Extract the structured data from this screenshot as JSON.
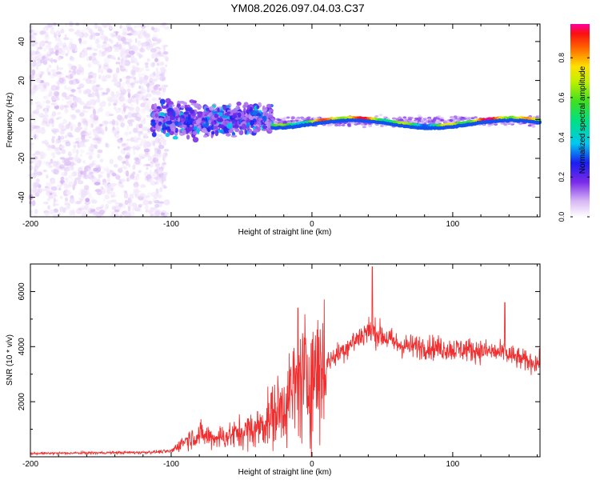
{
  "title": "YM08.2026.097.04.03.C37",
  "chart_data": [
    {
      "type": "heatmap",
      "title": "YM08.2026.097.04.03.C37",
      "xlabel": "Height of straight line (km)",
      "ylabel": "Frequency (Hz)",
      "xlim": [
        -200,
        162
      ],
      "ylim": [
        -50,
        49
      ],
      "xticks": [
        -200,
        -100,
        0,
        100
      ],
      "yticks": [
        -40,
        -20,
        0,
        20,
        40
      ],
      "colorbar": {
        "label": "Normalized spectral amplitude",
        "range": [
          0,
          0.97
        ],
        "ticks": [
          0,
          0.2,
          0.4,
          0.6,
          0.8
        ],
        "tick_labels": [
          "0.0",
          "0.2",
          "0.4",
          "0.6",
          "0.8"
        ]
      },
      "regions": [
        {
          "name": "broadband noise",
          "x_range": [
            -200,
            -103
          ],
          "freq_range": [
            -50,
            49
          ],
          "amplitude": [
            0.02,
            0.1
          ]
        },
        {
          "name": "spread signal",
          "x_range": [
            -113,
            -28
          ],
          "freq_range": [
            -15,
            15
          ],
          "amplitude": [
            0.1,
            0.45
          ]
        },
        {
          "name": "narrow tone",
          "x_range": [
            -28,
            162
          ],
          "freq_center": [
            -3,
            1
          ],
          "amplitude": [
            0.3,
            0.97
          ]
        }
      ]
    },
    {
      "type": "line",
      "xlabel": "Height of straight line (km)",
      "ylabel": "SNR (10 * v/v)",
      "xlim": [
        -200,
        162
      ],
      "ylim": [
        0,
        7000
      ],
      "xticks": [
        -200,
        -100,
        0,
        100
      ],
      "yticks": [
        2000,
        4000,
        6000
      ],
      "color": "#f03030",
      "series": [
        {
          "name": "SNR",
          "x": [
            -200,
            -180,
            -160,
            -140,
            -120,
            -100,
            -90,
            -80,
            -70,
            -60,
            -50,
            -40,
            -30,
            -20,
            -10,
            0,
            10,
            20,
            30,
            40,
            50,
            60,
            70,
            80,
            90,
            100,
            110,
            120,
            130,
            140,
            150,
            162
          ],
          "values": [
            120,
            130,
            140,
            150,
            160,
            200,
            600,
            800,
            700,
            750,
            900,
            1000,
            1400,
            1900,
            2600,
            3000,
            3400,
            3800,
            4200,
            4600,
            4400,
            4100,
            4000,
            4000,
            3950,
            3900,
            3900,
            3850,
            3800,
            3700,
            3500,
            3400
          ],
          "peaks": [
            {
              "x": 43,
              "value": 6900
            },
            {
              "x": 137,
              "value": 5600
            },
            {
              "x": -10,
              "value": 5400
            }
          ]
        }
      ]
    }
  ]
}
